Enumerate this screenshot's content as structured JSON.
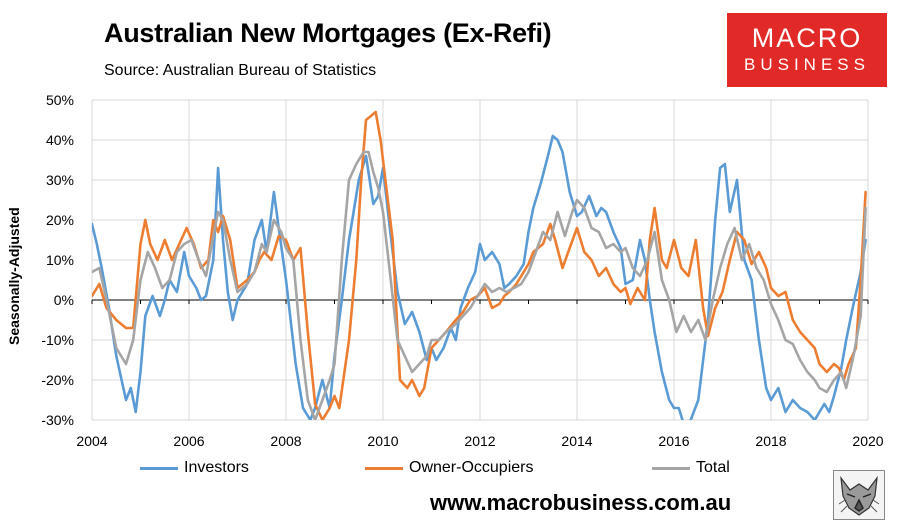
{
  "header": {
    "title": "Australian New Mortgages (Ex-Refi)",
    "subtitle": "Source: Australian Bureau of Statistics"
  },
  "logo": {
    "line1": "MACRO",
    "line2": "BUSINESS",
    "color": "#e12a28"
  },
  "footer": {
    "website": "www.macrobusiness.com.au",
    "emblem_icon": "wolf-emblem-icon"
  },
  "colors": {
    "investors": "#5b9bd5",
    "owner_occupiers": "#ed7d31",
    "total": "#a5a5a5"
  },
  "chart_data": {
    "type": "line",
    "title": "Australian New Mortgages (Ex-Refi)",
    "ylabel": "Seasonally-Adjusted",
    "xlabel": "",
    "xlim": [
      2004,
      2020
    ],
    "ylim": [
      -30,
      50
    ],
    "x_ticks": [
      "2004",
      "2006",
      "2008",
      "2010",
      "2012",
      "2014",
      "2016",
      "2018",
      "2020"
    ],
    "y_ticks": [
      "-30%",
      "-20%",
      "-10%",
      "0%",
      "10%",
      "20%",
      "30%",
      "40%",
      "50%"
    ],
    "grid": true,
    "legend": "bottom",
    "series": [
      {
        "name": "Investors",
        "color": "#5b9bd5",
        "x": [
          2004.0,
          2004.1,
          2004.2,
          2004.35,
          2004.5,
          2004.7,
          2004.8,
          2004.9,
          2005.0,
          2005.1,
          2005.25,
          2005.4,
          2005.5,
          2005.6,
          2005.75,
          2005.9,
          2006.0,
          2006.15,
          2006.25,
          2006.35,
          2006.5,
          2006.6,
          2006.7,
          2006.8,
          2006.9,
          2007.0,
          2007.2,
          2007.35,
          2007.5,
          2007.6,
          2007.75,
          2007.85,
          2008.0,
          2008.2,
          2008.35,
          2008.5,
          2008.6,
          2008.75,
          2008.9,
          2009.0,
          2009.15,
          2009.3,
          2009.5,
          2009.65,
          2009.8,
          2009.9,
          2010.0,
          2010.15,
          2010.3,
          2010.45,
          2010.6,
          2010.75,
          2010.9,
          2011.0,
          2011.1,
          2011.25,
          2011.4,
          2011.5,
          2011.6,
          2011.75,
          2011.9,
          2012.0,
          2012.1,
          2012.25,
          2012.4,
          2012.5,
          2012.6,
          2012.75,
          2012.9,
          2013.0,
          2013.1,
          2013.25,
          2013.4,
          2013.5,
          2013.6,
          2013.7,
          2013.85,
          2014.0,
          2014.1,
          2014.25,
          2014.4,
          2014.5,
          2014.6,
          2014.75,
          2014.9,
          2015.0,
          2015.15,
          2015.3,
          2015.4,
          2015.5,
          2015.6,
          2015.75,
          2015.9,
          2016.0,
          2016.1,
          2016.25,
          2016.5,
          2016.7,
          2016.85,
          2016.95,
          2017.05,
          2017.15,
          2017.3,
          2017.45,
          2017.6,
          2017.75,
          2017.9,
          2018.0,
          2018.15,
          2018.3,
          2018.45,
          2018.6,
          2018.75,
          2018.9,
          2019.0,
          2019.1,
          2019.2,
          2019.3,
          2019.45,
          2019.55,
          2019.7,
          2019.85,
          2019.95
        ],
        "values": [
          19,
          14,
          8,
          -2,
          -14,
          -25,
          -22,
          -28,
          -18,
          -4,
          1,
          -4,
          0,
          5,
          2,
          12,
          6,
          3,
          0,
          1,
          10,
          33,
          15,
          2,
          -5,
          0,
          4,
          15,
          20,
          12,
          27,
          18,
          5,
          -16,
          -27,
          -30,
          -27,
          -20,
          -27,
          -14,
          0,
          15,
          30,
          36,
          24,
          26,
          33,
          17,
          2,
          -6,
          -3,
          -8,
          -15,
          -12,
          -15,
          -12,
          -7,
          -10,
          -2,
          3,
          7,
          14,
          10,
          12,
          9,
          3,
          4,
          6,
          9,
          17,
          23,
          29,
          36,
          41,
          40,
          37,
          27,
          21,
          22,
          26,
          21,
          23,
          22,
          17,
          13,
          4,
          5,
          15,
          10,
          0,
          -8,
          -18,
          -25,
          -27,
          -27,
          -33,
          -25,
          -5,
          20,
          33,
          34,
          22,
          30,
          10,
          5,
          -10,
          -22,
          -25,
          -22,
          -28,
          -25,
          -27,
          -28,
          -30,
          -28,
          -26,
          -28,
          -24,
          -17,
          -10,
          -1,
          7,
          15
        ]
      },
      {
        "name": "Owner-Occupiers",
        "color": "#ed7d31",
        "x": [
          2004.0,
          2004.15,
          2004.3,
          2004.5,
          2004.7,
          2004.85,
          2005.0,
          2005.1,
          2005.2,
          2005.35,
          2005.5,
          2005.65,
          2005.8,
          2005.95,
          2006.1,
          2006.25,
          2006.4,
          2006.5,
          2006.6,
          2006.7,
          2006.85,
          2007.0,
          2007.2,
          2007.35,
          2007.45,
          2007.55,
          2007.7,
          2007.85,
          2008.0,
          2008.15,
          2008.3,
          2008.45,
          2008.6,
          2008.75,
          2008.9,
          2009.0,
          2009.1,
          2009.3,
          2009.45,
          2009.55,
          2009.65,
          2009.75,
          2009.85,
          2009.95,
          2010.05,
          2010.2,
          2010.35,
          2010.5,
          2010.6,
          2010.75,
          2010.85,
          2011.0,
          2011.15,
          2011.3,
          2011.5,
          2011.65,
          2011.8,
          2011.95,
          2012.1,
          2012.25,
          2012.4,
          2012.5,
          2012.6,
          2012.75,
          2012.9,
          2013.0,
          2013.1,
          2013.3,
          2013.45,
          2013.55,
          2013.7,
          2013.85,
          2014.0,
          2014.15,
          2014.3,
          2014.45,
          2014.6,
          2014.75,
          2014.9,
          2015.0,
          2015.1,
          2015.25,
          2015.4,
          2015.5,
          2015.6,
          2015.75,
          2015.85,
          2016.0,
          2016.15,
          2016.3,
          2016.45,
          2016.6,
          2016.7,
          2016.85,
          2017.0,
          2017.15,
          2017.3,
          2017.45,
          2017.6,
          2017.75,
          2017.9,
          2018.0,
          2018.15,
          2018.3,
          2018.45,
          2018.6,
          2018.75,
          2018.9,
          2019.0,
          2019.15,
          2019.3,
          2019.4,
          2019.5,
          2019.6,
          2019.75,
          2019.85,
          2019.95
        ],
        "values": [
          1,
          4,
          -2,
          -5,
          -7,
          -7,
          14,
          20,
          14,
          10,
          15,
          10,
          14,
          18,
          14,
          8,
          10,
          20,
          17,
          21,
          15,
          3,
          5,
          7,
          10,
          12,
          10,
          16,
          15,
          10,
          13,
          -8,
          -26,
          -30,
          -27,
          -24,
          -27,
          -10,
          10,
          30,
          45,
          46,
          47,
          40,
          30,
          15,
          -20,
          -22,
          -20,
          -24,
          -22,
          -12,
          -10,
          -8,
          -5,
          -3,
          0,
          1,
          3,
          -2,
          -1,
          1,
          2,
          4,
          7,
          9,
          12,
          14,
          19,
          15,
          8,
          13,
          18,
          12,
          10,
          6,
          8,
          4,
          2,
          3,
          -1,
          3,
          0,
          15,
          23,
          10,
          8,
          15,
          8,
          6,
          15,
          -2,
          -9,
          -2,
          2,
          10,
          17,
          15,
          9,
          12,
          8,
          3,
          1,
          2,
          -5,
          -8,
          -10,
          -12,
          -16,
          -18,
          -16,
          -17,
          -20,
          -16,
          -12,
          5,
          27
        ]
      },
      {
        "name": "Total",
        "color": "#a5a5a5",
        "x": [
          2004.0,
          2004.15,
          2004.3,
          2004.5,
          2004.7,
          2004.85,
          2005.0,
          2005.15,
          2005.3,
          2005.45,
          2005.6,
          2005.75,
          2005.9,
          2006.05,
          2006.2,
          2006.35,
          2006.5,
          2006.6,
          2006.7,
          2006.85,
          2007.0,
          2007.2,
          2007.35,
          2007.5,
          2007.6,
          2007.75,
          2007.9,
          2008.0,
          2008.15,
          2008.3,
          2008.45,
          2008.6,
          2008.75,
          2008.9,
          2009.0,
          2009.15,
          2009.3,
          2009.45,
          2009.6,
          2009.7,
          2009.8,
          2009.9,
          2010.0,
          2010.15,
          2010.3,
          2010.45,
          2010.6,
          2010.75,
          2010.9,
          2011.0,
          2011.15,
          2011.3,
          2011.5,
          2011.65,
          2011.8,
          2011.95,
          2012.1,
          2012.25,
          2012.4,
          2012.55,
          2012.7,
          2012.85,
          2013.0,
          2013.15,
          2013.3,
          2013.45,
          2013.6,
          2013.75,
          2013.9,
          2014.0,
          2014.15,
          2014.3,
          2014.45,
          2014.6,
          2014.75,
          2014.9,
          2015.0,
          2015.15,
          2015.3,
          2015.45,
          2015.6,
          2015.75,
          2015.9,
          2016.05,
          2016.2,
          2016.35,
          2016.5,
          2016.65,
          2016.8,
          2016.95,
          2017.1,
          2017.25,
          2017.4,
          2017.55,
          2017.7,
          2017.85,
          2018.0,
          2018.15,
          2018.3,
          2018.45,
          2018.6,
          2018.75,
          2018.9,
          2019.0,
          2019.15,
          2019.3,
          2019.45,
          2019.55,
          2019.7,
          2019.85,
          2019.95
        ],
        "values": [
          7,
          8,
          0,
          -12,
          -16,
          -10,
          5,
          12,
          8,
          3,
          5,
          12,
          14,
          15,
          10,
          6,
          16,
          22,
          20,
          10,
          2,
          4,
          7,
          14,
          12,
          20,
          17,
          13,
          10,
          -10,
          -25,
          -30,
          -25,
          -20,
          -16,
          10,
          30,
          34,
          37,
          37,
          32,
          28,
          22,
          6,
          -10,
          -14,
          -18,
          -16,
          -14,
          -10,
          -10,
          -8,
          -6,
          -4,
          -2,
          1,
          4,
          2,
          3,
          2,
          3,
          4,
          7,
          12,
          17,
          15,
          22,
          16,
          22,
          25,
          23,
          18,
          17,
          13,
          14,
          12,
          13,
          8,
          6,
          10,
          17,
          5,
          0,
          -8,
          -4,
          -8,
          -5,
          -10,
          0,
          8,
          14,
          18,
          10,
          14,
          8,
          5,
          -1,
          -5,
          -10,
          -11,
          -15,
          -18,
          -20,
          -22,
          -23,
          -20,
          -18,
          -22,
          -14,
          -4,
          23
        ]
      }
    ]
  }
}
